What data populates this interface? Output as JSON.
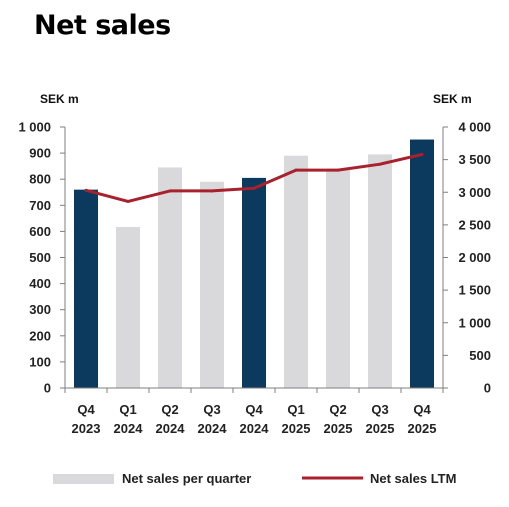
{
  "title": "Net sales",
  "chart_data": {
    "type": "bar",
    "left_axis_label": "SEK m",
    "right_axis_label": "SEK m",
    "left_ticks": [
      "0",
      "100",
      "200",
      "300",
      "400",
      "500",
      "600",
      "700",
      "800",
      "900",
      "1 000"
    ],
    "right_ticks": [
      "0",
      "500",
      "1 000",
      "1 500",
      "2 000",
      "2 500",
      "3 000",
      "3 500",
      "4 000"
    ],
    "ylim_left": [
      0,
      1000
    ],
    "ylim_right": [
      0,
      4000
    ],
    "categories": [
      {
        "quarter": "Q4",
        "year": "2023"
      },
      {
        "quarter": "Q1",
        "year": "2024"
      },
      {
        "quarter": "Q2",
        "year": "2024"
      },
      {
        "quarter": "Q3",
        "year": "2024"
      },
      {
        "quarter": "Q4",
        "year": "2024"
      },
      {
        "quarter": "Q1",
        "year": "2025"
      },
      {
        "quarter": "Q2",
        "year": "2025"
      },
      {
        "quarter": "Q3",
        "year": "2025"
      },
      {
        "quarter": "Q4",
        "year": "2025"
      }
    ],
    "series": [
      {
        "name": "Net sales per quarter",
        "axis": "left",
        "type": "bar",
        "values": [
          760,
          617,
          845,
          790,
          805,
          890,
          840,
          895,
          952
        ],
        "highlight": [
          true,
          false,
          false,
          false,
          true,
          false,
          false,
          false,
          true
        ]
      },
      {
        "name": "Net sales LTM",
        "axis": "right",
        "type": "line",
        "values": [
          3030,
          2860,
          3020,
          3020,
          3060,
          3340,
          3340,
          3430,
          3580
        ]
      }
    ],
    "colors": {
      "bar": "#d9d9db",
      "bar_highlight": "#0b3a5e",
      "line": "#a8212c",
      "axis": "#7f7f7f"
    },
    "grid": false,
    "legend_position": "bottom"
  }
}
